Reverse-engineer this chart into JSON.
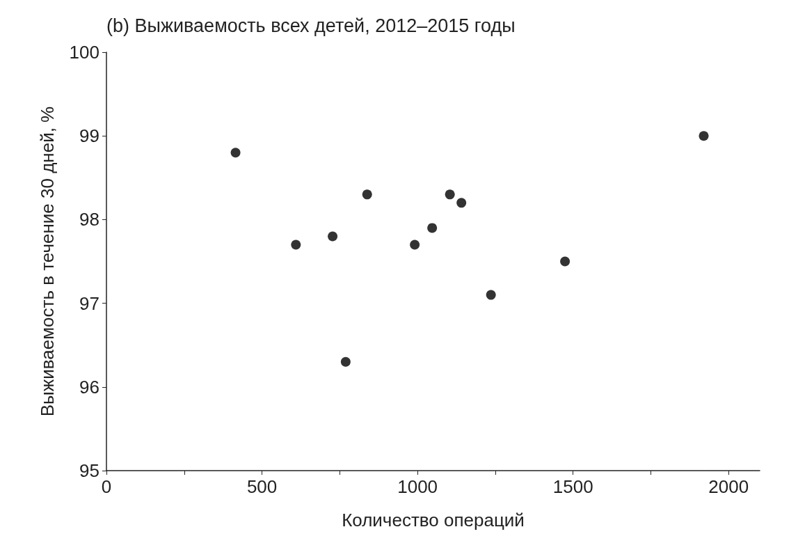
{
  "chart_data": {
    "type": "scatter",
    "title": "(b) Выживаемость всех детей, 2012–2015 годы",
    "xlabel": "Количество операций",
    "ylabel": "Выживаемость в течение 30 дней, %",
    "x": [
      415,
      609,
      727,
      769,
      838,
      991,
      1047,
      1104,
      1141,
      1236,
      1474,
      1920
    ],
    "values": [
      98.8,
      97.7,
      97.8,
      96.3,
      98.3,
      97.7,
      97.9,
      98.3,
      98.2,
      97.1,
      97.5,
      99.0
    ],
    "color": "#000000",
    "marker": "circle",
    "xlim": [
      0,
      2100
    ],
    "xticks": [
      0,
      {
        "value": 250,
        "label": null
      },
      500,
      {
        "value": 750,
        "label": null
      },
      1000,
      {
        "value": 1250,
        "label": null
      },
      1500,
      {
        "value": 1750,
        "label": null
      },
      2000
    ],
    "ylim": [
      95,
      100
    ],
    "yticks": [
      95,
      96,
      97,
      98,
      99,
      100
    ]
  }
}
